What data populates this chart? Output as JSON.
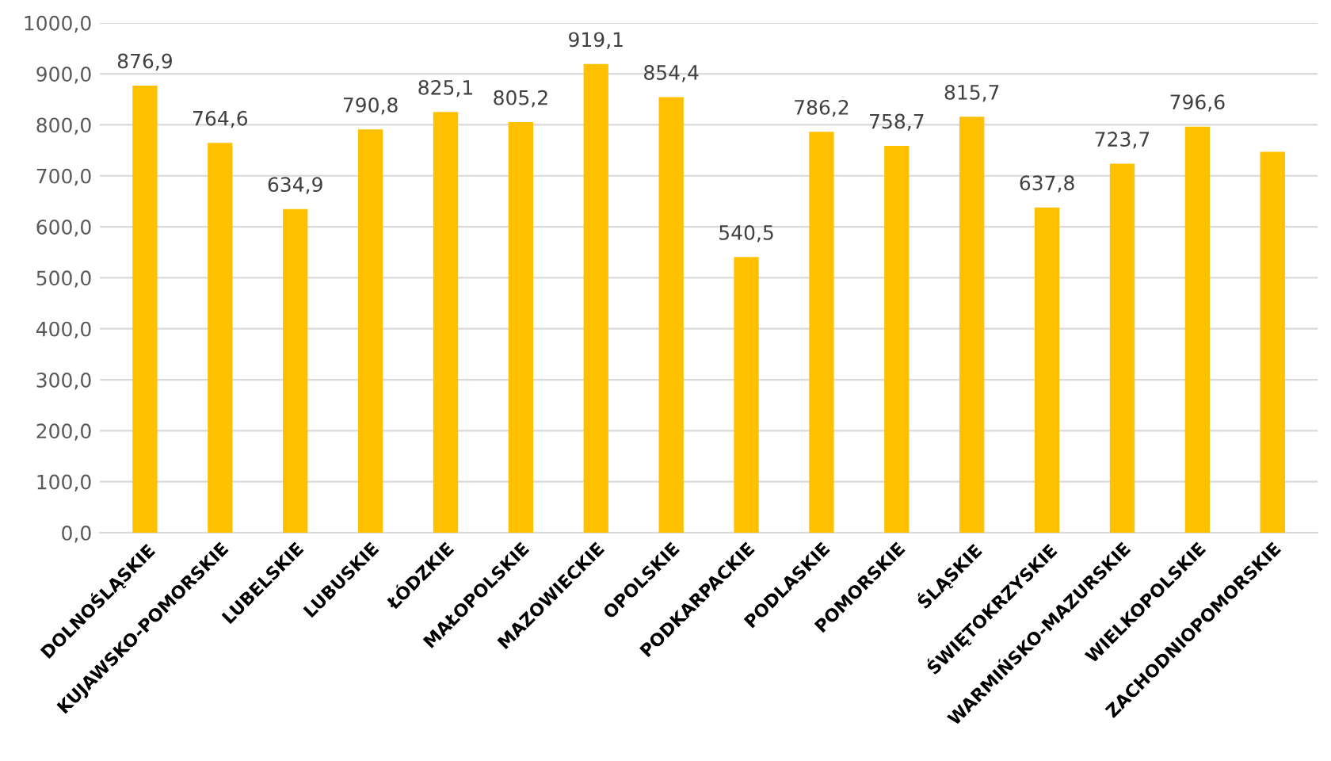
{
  "chart_data": {
    "type": "bar",
    "categories": [
      "DOLNOŚLĄSKIE",
      "KUJAWSKO-POMORSKIE",
      "LUBELSKIE",
      "LUBUSKIE",
      "ŁÓDZKIE",
      "MAŁOPOLSKIE",
      "MAZOWIECKIE",
      "OPOLSKIE",
      "PODKARPACKIE",
      "PODLASKIE",
      "POMORSKIE",
      "ŚLĄSKIE",
      "ŚWIĘTOKRZYSKIE",
      "WARMIŃSKO-MAZURSKIE",
      "WIELKOPOLSKIE",
      "ZACHODNIOPOMORSKIE"
    ],
    "values": [
      876.9,
      764.6,
      634.9,
      790.8,
      825.1,
      805.2,
      919.1,
      854.4,
      540.5,
      786.2,
      758.7,
      815.7,
      637.8,
      723.7,
      796.6,
      747
    ],
    "value_labels": [
      "876,9",
      "764,6",
      "634,9",
      "790,8",
      "825,1",
      "805,2",
      "919,1",
      "854,4",
      "540,5",
      "786,2",
      "758,7",
      "815,7",
      "637,8",
      "723,7",
      "796,6",
      null
    ],
    "color": "#ffc000",
    "ylim": [
      0,
      1000
    ],
    "yticks": [
      {
        "value": 0,
        "label": "0,0"
      },
      {
        "value": 100,
        "label": "100,0"
      },
      {
        "value": 200,
        "label": "200,0"
      },
      {
        "value": 300,
        "label": "300,0"
      },
      {
        "value": 400,
        "label": "400,0"
      },
      {
        "value": 500,
        "label": "500,0"
      },
      {
        "value": 600,
        "label": "600,0"
      },
      {
        "value": 700,
        "label": "700,0"
      },
      {
        "value": 800,
        "label": "800,0"
      },
      {
        "value": 900,
        "label": "900,0"
      },
      {
        "value": 1000,
        "label": "1000,0"
      }
    ],
    "grid": "y"
  }
}
